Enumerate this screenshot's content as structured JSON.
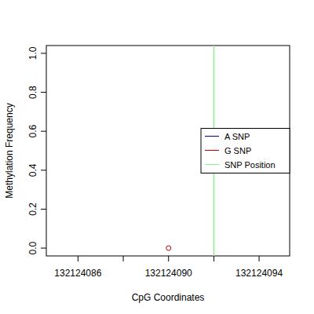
{
  "chart_data": {
    "type": "scatter",
    "x_label": "CpG Coordinates",
    "y_label": "Methylation Frequency",
    "xlim": [
      132124084.6,
      132124095.35
    ],
    "ylim": [
      -0.04,
      1.04
    ],
    "xticks": [
      132124086,
      {
        "value": 132124088,
        "label": null
      },
      132124090,
      {
        "value": 132124092,
        "label": null
      },
      132124094
    ],
    "yticks": [
      {
        "value": 0,
        "label": "0.0"
      },
      {
        "value": 0.2,
        "label": "0.2"
      },
      {
        "value": 0.4,
        "label": "0.4"
      },
      {
        "value": 0.6,
        "label": "0.6"
      },
      {
        "value": 0.8,
        "label": "0.8"
      },
      {
        "value": 1,
        "label": "1.0"
      }
    ],
    "legend": "right",
    "series": [
      {
        "name": "A SNP",
        "color": "#00008b",
        "marker": "circle",
        "x": [],
        "values": []
      },
      {
        "name": "G SNP",
        "color": "#c00000",
        "marker": "circle",
        "x": [
          132124090
        ],
        "values": [
          0
        ]
      },
      {
        "name": "SNP Position",
        "type": "vline",
        "color": "#90ee90",
        "x": [
          132124092
        ]
      }
    ]
  }
}
